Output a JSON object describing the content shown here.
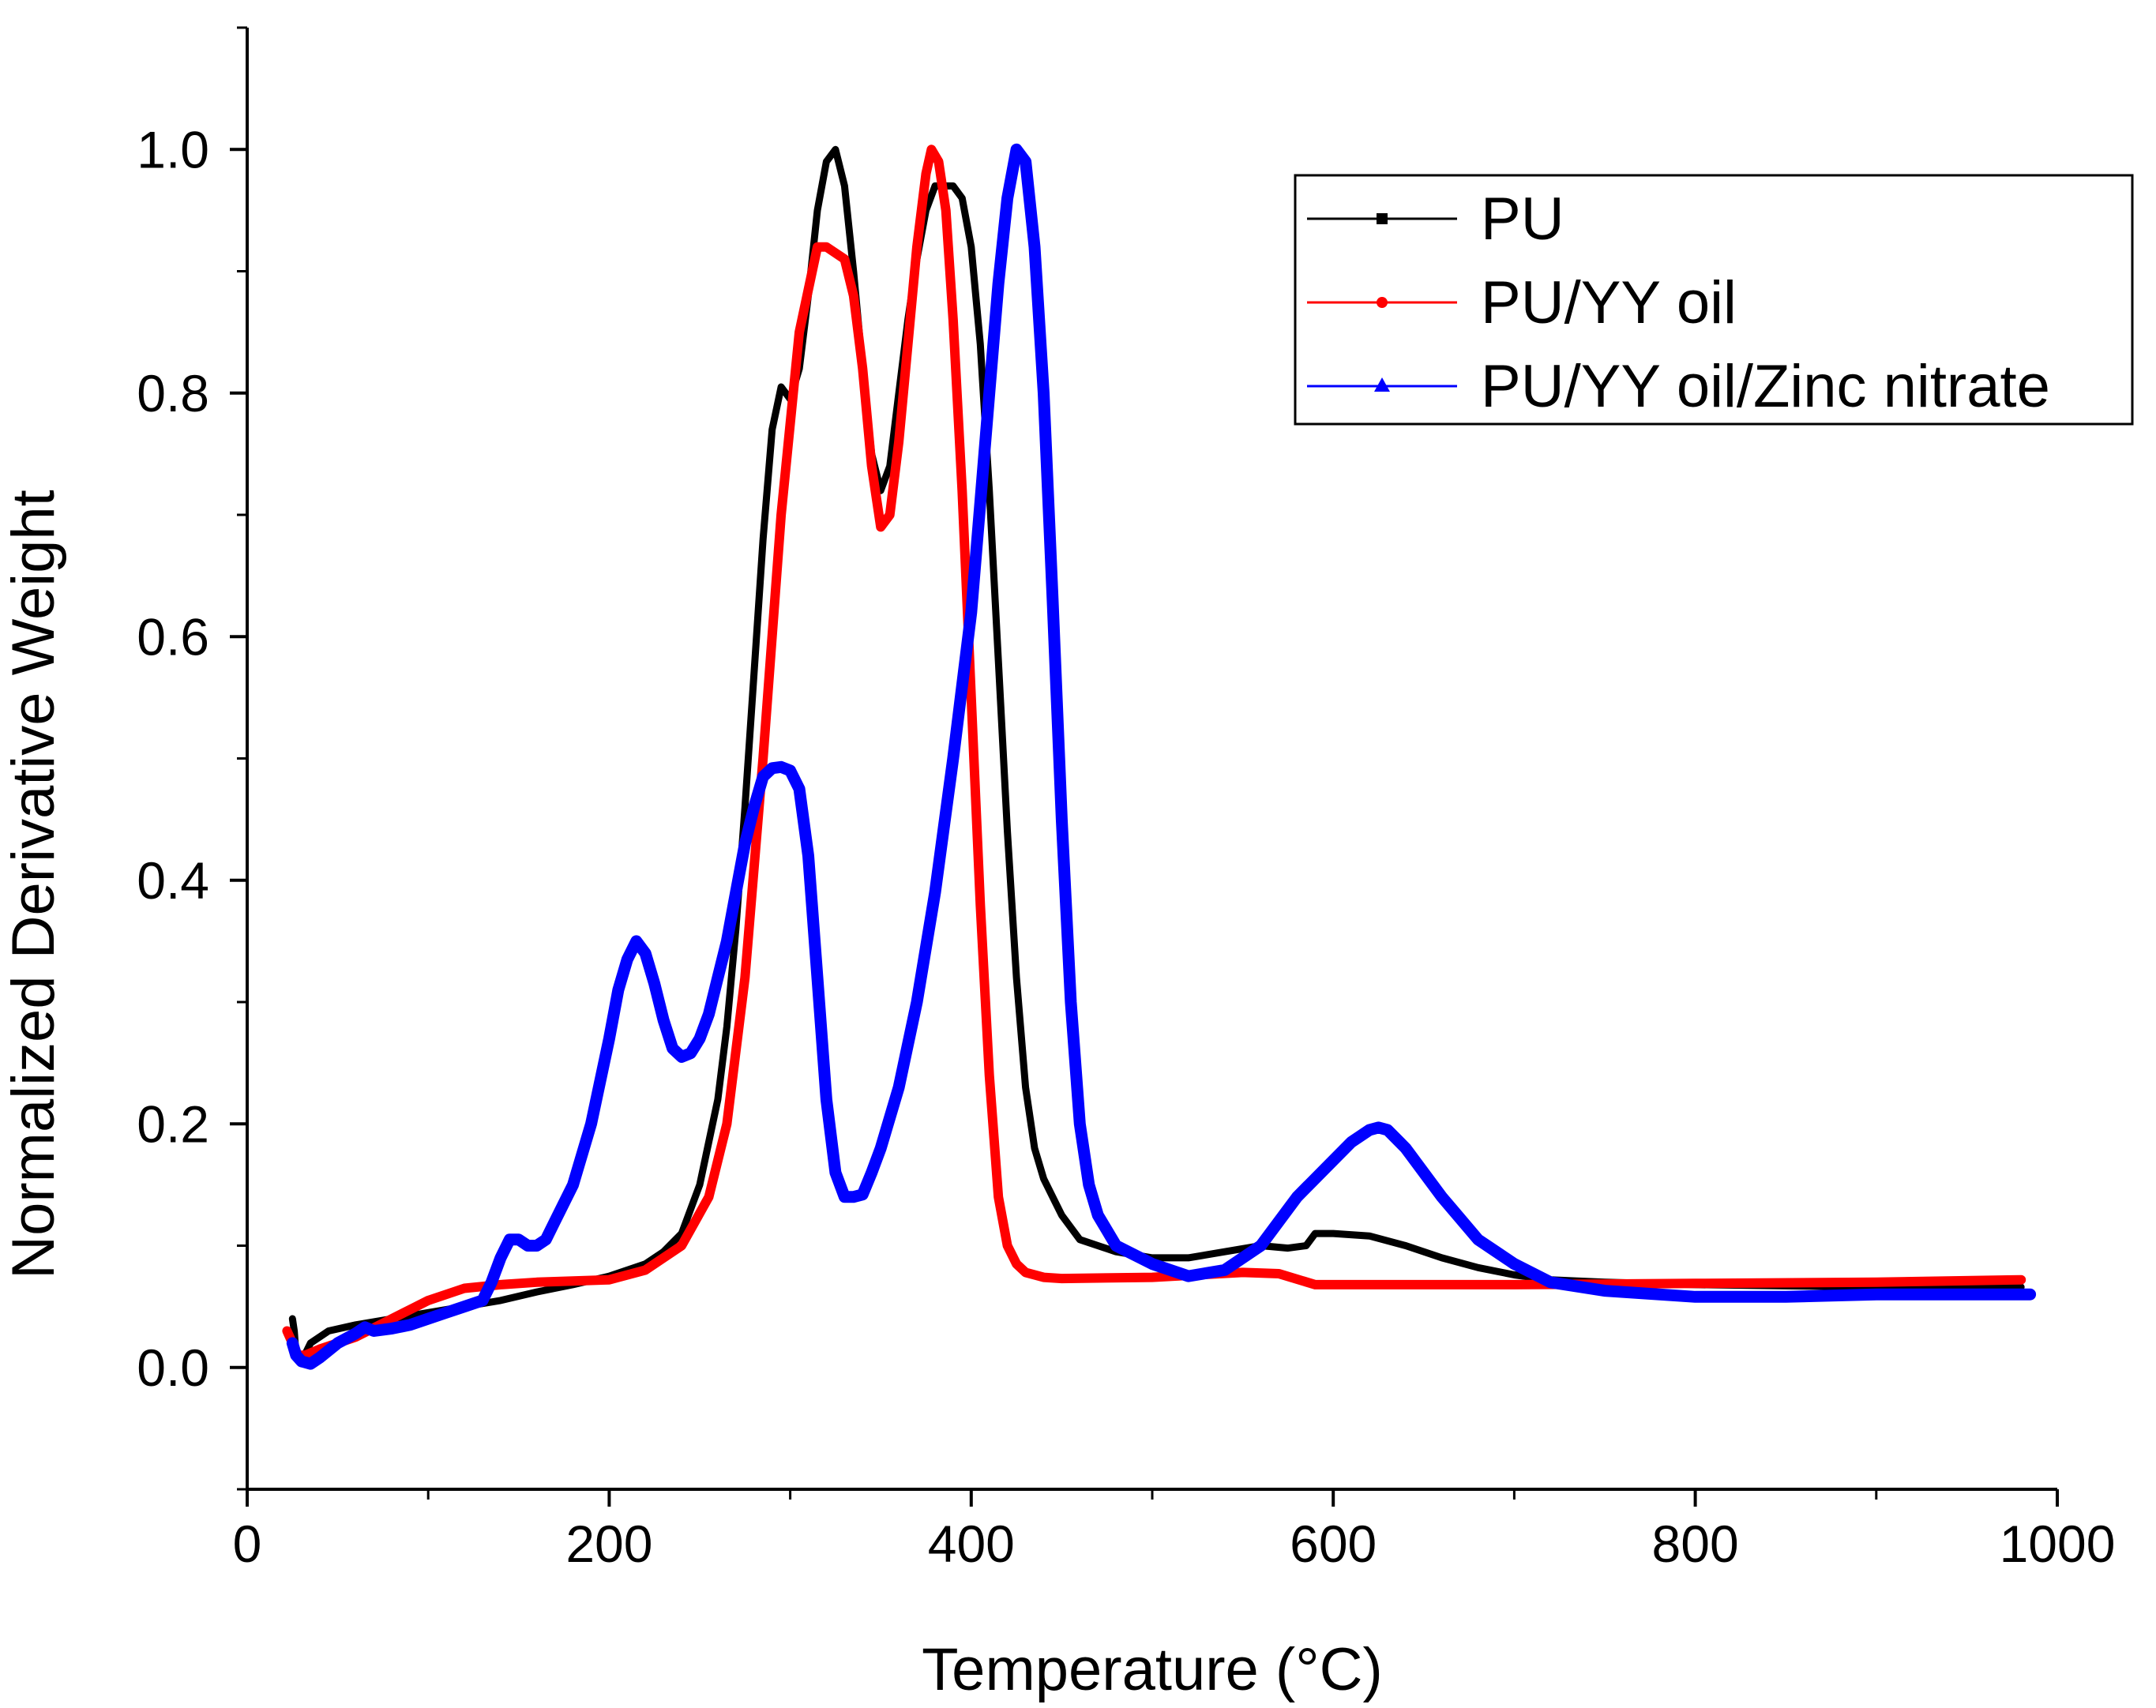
{
  "chart_data": {
    "type": "line",
    "title": "",
    "xlabel": "Temperature (°C)",
    "ylabel": "Normalized Derivative Weight",
    "xlim": [
      0,
      1000
    ],
    "ylim": [
      -0.1,
      1.1
    ],
    "xticks": [
      0,
      200,
      400,
      600,
      800,
      1000
    ],
    "xtick_labels": [
      "0",
      "200",
      "400",
      "600",
      "800",
      "1000"
    ],
    "yticks": [
      0.0,
      0.2,
      0.4,
      0.6,
      0.8,
      1.0
    ],
    "ytick_labels": [
      "0.0",
      "0.2",
      "0.4",
      "0.6",
      "0.8",
      "1.0"
    ],
    "grid": false,
    "legend_position": "top-right",
    "series": [
      {
        "name": "PU",
        "color": "#000000",
        "marker": "square",
        "x": [
          25,
          26,
          27,
          30,
          35,
          45,
          60,
          80,
          100,
          120,
          140,
          160,
          180,
          200,
          220,
          230,
          240,
          250,
          260,
          265,
          270,
          275,
          280,
          285,
          290,
          295,
          300,
          305,
          310,
          315,
          320,
          325,
          330,
          335,
          340,
          345,
          350,
          355,
          360,
          365,
          370,
          375,
          380,
          385,
          390,
          395,
          400,
          405,
          410,
          415,
          420,
          425,
          430,
          435,
          440,
          445,
          450,
          460,
          480,
          500,
          520,
          540,
          560,
          575,
          585,
          590,
          600,
          620,
          640,
          660,
          680,
          700,
          720,
          750,
          800,
          850,
          900,
          950,
          980
        ],
        "y": [
          0.04,
          0.03,
          0.01,
          0.005,
          0.02,
          0.03,
          0.035,
          0.04,
          0.045,
          0.05,
          0.055,
          0.062,
          0.068,
          0.075,
          0.085,
          0.095,
          0.11,
          0.15,
          0.22,
          0.28,
          0.36,
          0.46,
          0.57,
          0.68,
          0.77,
          0.805,
          0.795,
          0.82,
          0.88,
          0.95,
          0.99,
          1.0,
          0.97,
          0.9,
          0.82,
          0.75,
          0.72,
          0.74,
          0.8,
          0.86,
          0.91,
          0.95,
          0.97,
          0.97,
          0.97,
          0.96,
          0.92,
          0.84,
          0.72,
          0.58,
          0.44,
          0.32,
          0.23,
          0.18,
          0.155,
          0.14,
          0.125,
          0.105,
          0.095,
          0.09,
          0.09,
          0.095,
          0.1,
          0.098,
          0.1,
          0.11,
          0.11,
          0.108,
          0.1,
          0.09,
          0.082,
          0.076,
          0.072,
          0.07,
          0.068,
          0.067,
          0.066,
          0.066,
          0.066
        ]
      },
      {
        "name": "PU/YY oil",
        "color": "#ff0000",
        "marker": "circle",
        "x": [
          22,
          25,
          28,
          32,
          40,
          60,
          80,
          100,
          120,
          140,
          160,
          180,
          200,
          220,
          240,
          255,
          265,
          275,
          285,
          295,
          305,
          315,
          320,
          330,
          335,
          340,
          345,
          350,
          355,
          360,
          365,
          370,
          375,
          378,
          382,
          386,
          390,
          395,
          400,
          405,
          410,
          415,
          420,
          425,
          430,
          440,
          450,
          500,
          550,
          570,
          590,
          620,
          700,
          800,
          900,
          980
        ],
        "y": [
          0.03,
          0.02,
          0.01,
          0.01,
          0.015,
          0.025,
          0.04,
          0.055,
          0.065,
          0.068,
          0.07,
          0.071,
          0.072,
          0.08,
          0.1,
          0.14,
          0.2,
          0.32,
          0.5,
          0.7,
          0.85,
          0.92,
          0.92,
          0.91,
          0.88,
          0.82,
          0.74,
          0.69,
          0.7,
          0.76,
          0.84,
          0.92,
          0.98,
          1.0,
          0.99,
          0.95,
          0.86,
          0.72,
          0.55,
          0.38,
          0.24,
          0.14,
          0.1,
          0.085,
          0.078,
          0.074,
          0.073,
          0.074,
          0.078,
          0.077,
          0.068,
          0.068,
          0.068,
          0.069,
          0.07,
          0.072
        ]
      },
      {
        "name": "PU/YY oil/Zinc nitrate",
        "color": "#0000ff",
        "marker": "triangle",
        "x": [
          25,
          27,
          30,
          35,
          40,
          50,
          60,
          65,
          70,
          80,
          90,
          100,
          110,
          120,
          130,
          135,
          140,
          145,
          150,
          155,
          160,
          165,
          170,
          180,
          190,
          200,
          205,
          210,
          215,
          220,
          225,
          230,
          235,
          240,
          245,
          250,
          255,
          260,
          265,
          270,
          275,
          280,
          285,
          290,
          295,
          300,
          305,
          310,
          315,
          320,
          325,
          330,
          335,
          340,
          345,
          350,
          360,
          370,
          380,
          390,
          400,
          405,
          410,
          415,
          420,
          425,
          430,
          435,
          440,
          445,
          450,
          455,
          460,
          465,
          470,
          480,
          500,
          520,
          540,
          560,
          580,
          600,
          610,
          620,
          625,
          630,
          640,
          660,
          680,
          700,
          720,
          750,
          800,
          850,
          900,
          950,
          985
        ],
        "y": [
          0.02,
          0.01,
          0.005,
          0.003,
          0.008,
          0.02,
          0.028,
          0.033,
          0.03,
          0.032,
          0.035,
          0.04,
          0.045,
          0.05,
          0.055,
          0.07,
          0.09,
          0.105,
          0.105,
          0.1,
          0.1,
          0.105,
          0.12,
          0.15,
          0.2,
          0.27,
          0.31,
          0.335,
          0.35,
          0.34,
          0.315,
          0.285,
          0.262,
          0.255,
          0.258,
          0.27,
          0.29,
          0.32,
          0.35,
          0.39,
          0.43,
          0.46,
          0.485,
          0.492,
          0.493,
          0.49,
          0.475,
          0.42,
          0.32,
          0.22,
          0.16,
          0.14,
          0.14,
          0.142,
          0.16,
          0.18,
          0.23,
          0.3,
          0.39,
          0.5,
          0.62,
          0.71,
          0.8,
          0.89,
          0.96,
          1.0,
          0.99,
          0.92,
          0.8,
          0.63,
          0.45,
          0.3,
          0.2,
          0.15,
          0.125,
          0.1,
          0.085,
          0.075,
          0.08,
          0.1,
          0.14,
          0.17,
          0.185,
          0.195,
          0.197,
          0.195,
          0.18,
          0.14,
          0.105,
          0.085,
          0.07,
          0.063,
          0.058,
          0.058,
          0.06,
          0.06,
          0.06
        ]
      }
    ]
  }
}
